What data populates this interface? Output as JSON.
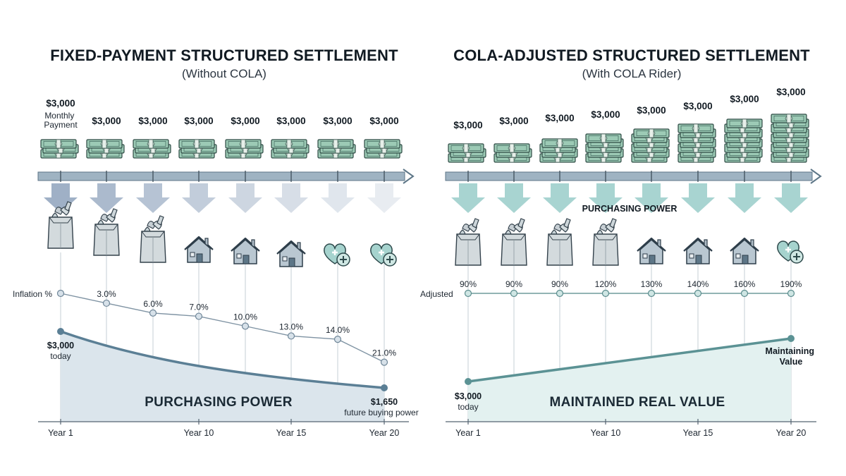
{
  "left_panel": {
    "title": "FIXED-PAYMENT STRUCTURED SETTLEMENT",
    "subtitle": "(Without COLA)",
    "payments": [
      "$3,000",
      "$3,000",
      "$3,000",
      "$3,000",
      "$3,000",
      "$3,000",
      "$3,000",
      "$3,000"
    ],
    "first_payment_caption": "Monthly Payment",
    "first_payment_caption_lines": [
      "Monthly",
      "Payment"
    ],
    "cash_stack_levels": [
      2,
      2,
      2,
      2,
      2,
      2,
      2,
      2
    ],
    "icons": [
      "grocery-bag-icon",
      "grocery-bag-icon",
      "grocery-bag-icon",
      "house-icon",
      "house-icon",
      "house-icon",
      "health-heart-icon",
      "health-heart-icon"
    ],
    "arrow_fade": [
      1.0,
      0.88,
      0.76,
      0.64,
      0.52,
      0.42,
      0.32,
      0.24
    ],
    "inflation_label": "Inflation %",
    "inflation_labels": [
      "",
      "3.0%",
      "6.0%",
      "7.0%",
      "10.0%",
      "13.0%",
      "14.0%",
      "21.0%"
    ],
    "start_value": "$3,000",
    "start_caption": "today",
    "end_value": "$1,650",
    "end_caption": "future buying power",
    "band_label": "PURCHASING POWER",
    "x_ticks": [
      "Year 1",
      "Year 10",
      "Year 15",
      "Year 20"
    ]
  },
  "right_panel": {
    "title": "COLA-ADJUSTED STRUCTURED SETTLEMENT",
    "subtitle": "(With COLA Rider)",
    "payments": [
      "$3,000",
      "$3,000",
      "$3,000",
      "$3,000",
      "$3,000",
      "$3,000",
      "$3,000",
      "$3,000"
    ],
    "cash_stack_levels": [
      2,
      2,
      3,
      4,
      5,
      6,
      7,
      8
    ],
    "icons": [
      "grocery-bag-icon",
      "grocery-bag-icon",
      "grocery-bag-icon",
      "grocery-bag-icon",
      "house-icon",
      "house-icon",
      "house-icon",
      "health-heart-icon"
    ],
    "arrow_overlay_label": "PURCHASING POWER",
    "adjusted_label": "Adjusted",
    "adjusted_labels": [
      "90%",
      "90%",
      "90%",
      "120%",
      "130%",
      "140%",
      "160%",
      "190%"
    ],
    "start_value": "$3,000",
    "start_caption": "today",
    "end_label": "Maintaining Value",
    "end_label_lines": [
      "Maintaining",
      "Value"
    ],
    "band_label": "MAINTAINED REAL VALUE",
    "x_ticks": [
      "Year 1",
      "Year 10",
      "Year 15",
      "Year 20"
    ]
  },
  "colors": {
    "timeline_bar": "#9fb3c2",
    "left_arrow": "#9fb0c6",
    "right_arrow": "#a8d4d1",
    "left_line": "#5b7f95",
    "left_area": "#dbe5ec",
    "right_line": "#5b9294",
    "right_area": "#e3f1f0",
    "cash_green": "#8fbfa8"
  },
  "chart_data": [
    {
      "type": "line",
      "title": "FIXED-PAYMENT STRUCTURED SETTLEMENT",
      "subtitle": "(Without COLA)",
      "x_tick_labels": [
        "Year 1",
        "Year 10",
        "Year 15",
        "Year 20"
      ],
      "series": [
        {
          "name": "Inflation %",
          "values": [
            0,
            3.0,
            6.0,
            7.0,
            10.0,
            13.0,
            14.0,
            21.0
          ]
        }
      ],
      "purchasing_power": {
        "start": 3000,
        "end": 1650
      }
    },
    {
      "type": "line",
      "title": "COLA-ADJUSTED STRUCTURED SETTLEMENT",
      "subtitle": "(With COLA Rider)",
      "x_tick_labels": [
        "Year 1",
        "Year 10",
        "Year 15",
        "Year 20"
      ],
      "series": [
        {
          "name": "Adjusted",
          "values": [
            90,
            90,
            90,
            120,
            130,
            140,
            160,
            190
          ]
        }
      ],
      "real_value": {
        "start": 3000
      }
    }
  ]
}
